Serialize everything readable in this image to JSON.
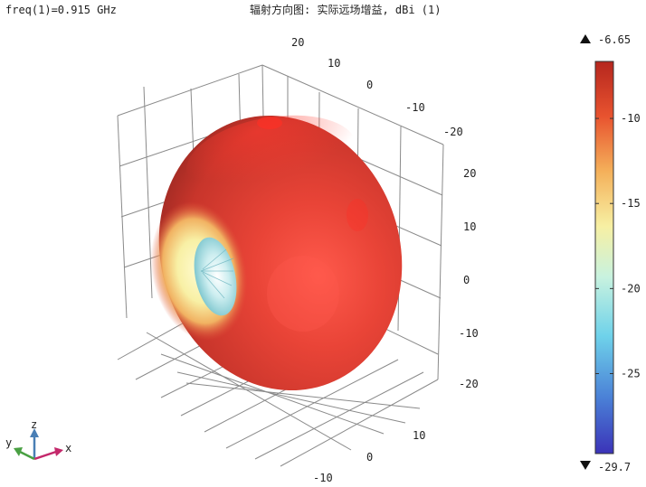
{
  "header": {
    "left": "freq(1)=0.915 GHz",
    "title": "辐射方向图: 实际远场增益, dBi (1)"
  },
  "chart_data": {
    "type": "3d-radiation-pattern",
    "title": "辐射方向图: 实际远场增益, dBi (1)",
    "frequency_label": "freq(1)=0.915 GHz",
    "quantity": "实际远场增益",
    "unit": "dBi",
    "axes": {
      "x": {
        "label": "x",
        "ticks": [
          "20",
          "10",
          "0",
          "-10",
          "-20"
        ]
      },
      "z": {
        "label": "z",
        "ticks": [
          "20",
          "10",
          "0",
          "-10",
          "-20"
        ]
      },
      "y": {
        "label": "y",
        "ticks": [
          "10",
          "0",
          "-10"
        ]
      }
    },
    "colorbar": {
      "max": -6.65,
      "min": -29.7,
      "max_label": "-6.65",
      "min_label": "-29.7",
      "ticks": [
        -10,
        -15,
        -20,
        -25
      ],
      "colormap": [
        "#3b33b8",
        "#4a7fd6",
        "#6fd2ea",
        "#c8f2df",
        "#f7f0a3",
        "#f4b05a",
        "#e8532f",
        "#b5261e"
      ],
      "max_marker": "triangle-up",
      "min_marker": "triangle-down"
    },
    "shape": "toroidal dipole-like pattern with a null along the x axis",
    "grid": true
  },
  "triad": {
    "x": "x",
    "y": "y",
    "z": "z"
  }
}
